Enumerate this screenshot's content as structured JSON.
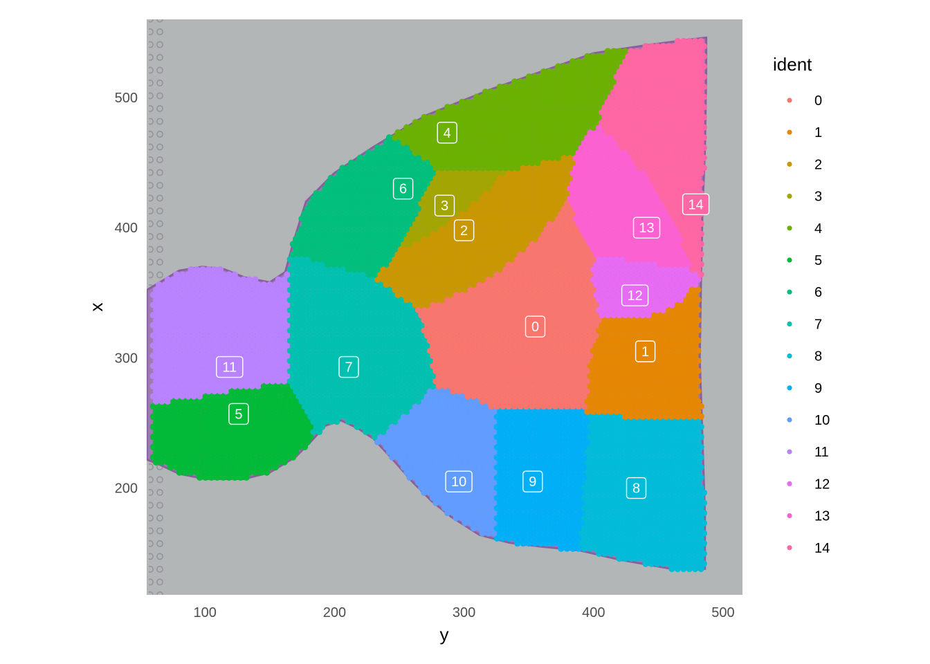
{
  "chart_data": {
    "type": "scatter",
    "title": "",
    "xlabel": "y",
    "ylabel": "x",
    "xlim": [
      55,
      515
    ],
    "ylim": [
      118,
      560
    ],
    "x_ticks": [
      100,
      200,
      300,
      400,
      500
    ],
    "y_ticks": [
      200,
      300,
      400,
      500
    ],
    "grid": false,
    "background": "tissue histology image (H&E stained section)",
    "legend": {
      "title": "ident",
      "placement": "right",
      "entries": [
        "0",
        "1",
        "2",
        "3",
        "4",
        "5",
        "6",
        "7",
        "8",
        "9",
        "10",
        "11",
        "12",
        "13",
        "14"
      ]
    },
    "palette": [
      "#F8766D",
      "#E58700",
      "#C99800",
      "#A3A500",
      "#6BB100",
      "#00BA38",
      "#00BF7D",
      "#00C0AF",
      "#00BCD8",
      "#00B0F6",
      "#619CFF",
      "#B983FF",
      "#E76BF3",
      "#FD61D1",
      "#FF67A4"
    ],
    "cluster_labels": [
      {
        "ident": "0",
        "y": 355,
        "x": 324
      },
      {
        "ident": "1",
        "y": 440,
        "x": 305
      },
      {
        "ident": "2",
        "y": 300,
        "x": 398
      },
      {
        "ident": "3",
        "y": 285,
        "x": 417
      },
      {
        "ident": "4",
        "y": 287,
        "x": 473
      },
      {
        "ident": "5",
        "y": 126,
        "x": 257
      },
      {
        "ident": "6",
        "y": 253,
        "x": 430
      },
      {
        "ident": "7",
        "y": 211,
        "x": 293
      },
      {
        "ident": "8",
        "y": 433,
        "x": 200
      },
      {
        "ident": "9",
        "y": 353,
        "x": 205
      },
      {
        "ident": "10",
        "y": 296,
        "x": 205
      },
      {
        "ident": "11",
        "y": 119,
        "x": 293
      },
      {
        "ident": "12",
        "y": 432,
        "x": 348
      },
      {
        "ident": "13",
        "y": 441,
        "x": 400
      },
      {
        "ident": "14",
        "y": 479,
        "x": 418
      }
    ],
    "spot_spacing": 4.5
  }
}
